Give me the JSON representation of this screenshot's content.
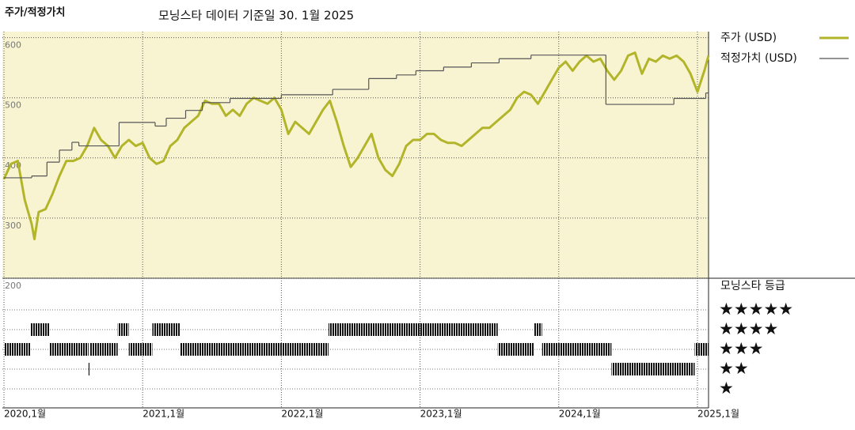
{
  "chart_data": {
    "type": "line",
    "title": "주가/적정가치",
    "subtitle": "모닝스타 데이터 기준일 30. 1월 2025",
    "xlim": [
      2020,
      2025.08
    ],
    "xticks": [
      {
        "value": 2020,
        "label": "2020,1월"
      },
      {
        "value": 2021,
        "label": "2021,1월"
      },
      {
        "value": 2022,
        "label": "2022,1월"
      },
      {
        "value": 2023,
        "label": "2023,1월"
      },
      {
        "value": 2024,
        "label": "2024,1월"
      },
      {
        "value": 2025,
        "label": "2025,1월"
      }
    ],
    "ylim": [
      200,
      610
    ],
    "yticks": [
      200,
      300,
      400,
      500,
      600
    ],
    "grid": true,
    "series": [
      {
        "name": "주가 (USD)",
        "color": "#b2b52a",
        "x": [
          2020.0,
          2020.05,
          2020.1,
          2020.15,
          2020.2,
          2020.22,
          2020.25,
          2020.3,
          2020.35,
          2020.4,
          2020.45,
          2020.5,
          2020.55,
          2020.6,
          2020.65,
          2020.7,
          2020.75,
          2020.8,
          2020.85,
          2020.9,
          2020.95,
          2021.0,
          2021.05,
          2021.1,
          2021.15,
          2021.2,
          2021.25,
          2021.3,
          2021.35,
          2021.4,
          2021.45,
          2021.5,
          2021.55,
          2021.6,
          2021.65,
          2021.7,
          2021.75,
          2021.8,
          2021.85,
          2021.9,
          2021.95,
          2022.0,
          2022.05,
          2022.1,
          2022.15,
          2022.2,
          2022.25,
          2022.3,
          2022.35,
          2022.4,
          2022.45,
          2022.5,
          2022.55,
          2022.6,
          2022.65,
          2022.7,
          2022.75,
          2022.8,
          2022.85,
          2022.9,
          2022.95,
          2023.0,
          2023.05,
          2023.1,
          2023.15,
          2023.2,
          2023.25,
          2023.3,
          2023.35,
          2023.4,
          2023.45,
          2023.5,
          2023.55,
          2023.6,
          2023.65,
          2023.7,
          2023.75,
          2023.8,
          2023.85,
          2023.9,
          2023.95,
          2024.0,
          2024.05,
          2024.1,
          2024.15,
          2024.2,
          2024.25,
          2024.3,
          2024.35,
          2024.4,
          2024.45,
          2024.5,
          2024.55,
          2024.6,
          2024.65,
          2024.7,
          2024.75,
          2024.8,
          2024.85,
          2024.9,
          2024.95,
          2025.0,
          2025.05,
          2025.08
        ],
        "values": [
          365,
          390,
          395,
          330,
          290,
          265,
          310,
          315,
          340,
          370,
          395,
          395,
          400,
          420,
          450,
          430,
          420,
          400,
          420,
          430,
          420,
          425,
          400,
          390,
          395,
          420,
          430,
          450,
          460,
          470,
          495,
          490,
          490,
          470,
          480,
          470,
          490,
          500,
          495,
          490,
          500,
          480,
          440,
          460,
          450,
          440,
          460,
          480,
          495,
          460,
          420,
          385,
          400,
          420,
          440,
          400,
          380,
          370,
          390,
          420,
          430,
          430,
          440,
          440,
          430,
          425,
          425,
          420,
          430,
          440,
          450,
          450,
          460,
          470,
          480,
          500,
          510,
          505,
          490,
          510,
          530,
          550,
          560,
          545,
          560,
          570,
          560,
          565,
          545,
          530,
          545,
          570,
          575,
          540,
          565,
          560,
          570,
          565,
          570,
          560,
          540,
          510,
          545,
          570
        ]
      },
      {
        "name": "적정가치 (USD)",
        "color": "#555555",
        "step": "post",
        "x": [
          2020.0,
          2020.2,
          2020.31,
          2020.4,
          2020.49,
          2020.54,
          2020.83,
          2021.09,
          2021.17,
          2021.31,
          2021.43,
          2021.63,
          2022.0,
          2022.37,
          2022.63,
          2022.83,
          2022.97,
          2023.17,
          2023.37,
          2023.57,
          2023.8,
          2024.34,
          2024.83,
          2025.06
        ],
        "values": [
          367,
          370,
          393,
          413,
          426,
          420,
          459,
          453,
          466,
          479,
          492,
          499,
          505,
          514,
          532,
          538,
          545,
          551,
          558,
          565,
          571,
          489,
          499,
          508
        ]
      }
    ],
    "ratings": {
      "title": "모닝스타 등급",
      "legend": [
        {
          "stars": 5,
          "label": "★★★★★"
        },
        {
          "stars": 4,
          "label": "★★★★"
        },
        {
          "stars": 3,
          "label": "★★★"
        },
        {
          "stars": 2,
          "label": "★★"
        },
        {
          "stars": 1,
          "label": "★"
        }
      ],
      "periods": [
        {
          "from": 2020.0,
          "to": 2020.19,
          "stars": 3
        },
        {
          "from": 2020.19,
          "to": 2020.33,
          "stars": 4
        },
        {
          "from": 2020.33,
          "to": 2020.61,
          "stars": 3
        },
        {
          "from": 2020.61,
          "to": 2020.62,
          "stars": 2
        },
        {
          "from": 2020.62,
          "to": 2020.82,
          "stars": 3
        },
        {
          "from": 2020.82,
          "to": 2020.9,
          "stars": 4
        },
        {
          "from": 2020.9,
          "to": 2021.07,
          "stars": 3
        },
        {
          "from": 2021.07,
          "to": 2021.27,
          "stars": 4
        },
        {
          "from": 2021.27,
          "to": 2022.34,
          "stars": 3
        },
        {
          "from": 2022.34,
          "to": 2023.56,
          "stars": 4
        },
        {
          "from": 2023.56,
          "to": 2023.82,
          "stars": 3
        },
        {
          "from": 2023.82,
          "to": 2023.88,
          "stars": 4
        },
        {
          "from": 2023.88,
          "to": 2024.38,
          "stars": 3
        },
        {
          "from": 2024.38,
          "to": 2024.98,
          "stars": 2
        },
        {
          "from": 2024.98,
          "to": 2025.08,
          "stars": 3
        }
      ]
    }
  }
}
